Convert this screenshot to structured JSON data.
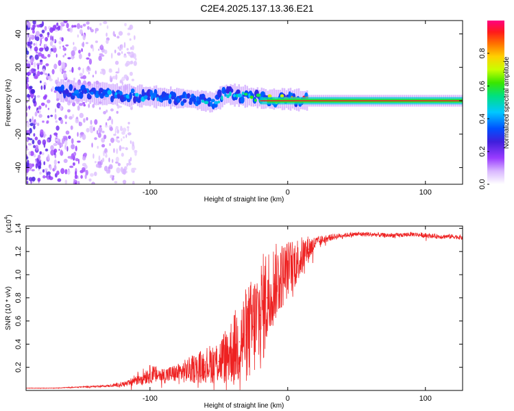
{
  "title": "C2E4.2025.137.13.36.E21",
  "chart_data": [
    {
      "type": "heatmap",
      "title": "C2E4.2025.137.13.36.E21",
      "xlabel": "Height of straight line (km)",
      "ylabel": "Frequency (Hz)",
      "xlim": [
        -190,
        127
      ],
      "ylim": [
        -50,
        48
      ],
      "xticks": [
        -100,
        0,
        100
      ],
      "xtick_labels": [
        "-100",
        "0",
        "100"
      ],
      "yticks": [
        -40,
        -20,
        0,
        20,
        40
      ],
      "ytick_labels": [
        "-40",
        "-20",
        "0",
        "20",
        "40"
      ],
      "colorbar": {
        "label": "Normalized spectral amplitude",
        "range": [
          0,
          1
        ],
        "ticks": [
          0.0,
          0.2,
          0.4,
          0.6,
          0.8
        ],
        "tick_labels": [
          "0.0",
          "0.2",
          "0.4",
          "0.6",
          "0.8"
        ],
        "colors": [
          "#ffffff",
          "#d9b8ff",
          "#9a3cff",
          "#3f1fdc",
          "#0050ff",
          "#00c8ff",
          "#00e080",
          "#39e600",
          "#c8ff00",
          "#ffd000",
          "#ff7000",
          "#ff1a1a",
          "#ff0080"
        ]
      },
      "signal_track": [
        {
          "x": -165,
          "y": 6,
          "amp": 0.3
        },
        {
          "x": -150,
          "y": 5,
          "amp": 0.3
        },
        {
          "x": -130,
          "y": 4,
          "amp": 0.35
        },
        {
          "x": -110,
          "y": 3,
          "amp": 0.35
        },
        {
          "x": -90,
          "y": 2,
          "amp": 0.35
        },
        {
          "x": -70,
          "y": 1,
          "amp": 0.35
        },
        {
          "x": -55,
          "y": -1,
          "amp": 0.4
        },
        {
          "x": -45,
          "y": 4,
          "amp": 0.45
        },
        {
          "x": -35,
          "y": 3,
          "amp": 0.45
        },
        {
          "x": -25,
          "y": 2,
          "amp": 0.5
        },
        {
          "x": -15,
          "y": 1,
          "amp": 0.6
        },
        {
          "x": 0,
          "y": 1,
          "amp": 0.8
        },
        {
          "x": 15,
          "y": 0,
          "amp": 0.9
        },
        {
          "x": 50,
          "y": 0,
          "amp": 0.9
        },
        {
          "x": 90,
          "y": 0,
          "amp": 0.9
        },
        {
          "x": 127,
          "y": 0,
          "amp": 0.9
        }
      ]
    },
    {
      "type": "line",
      "xlabel": "Height of straight line (km)",
      "ylabel": "SNR (10 * v/v)",
      "y_multiplier_label": "(x10",
      "y_multiplier_exponent": "4",
      "y_multiplier_suffix": ")",
      "xlim": [
        -190,
        127
      ],
      "ylim": [
        0,
        1.42
      ],
      "xticks": [
        -100,
        0,
        100
      ],
      "xtick_labels": [
        "-100",
        "0",
        "100"
      ],
      "yticks": [
        0.2,
        0.4,
        0.6,
        0.8,
        1.0,
        1.2,
        1.4
      ],
      "ytick_labels": [
        "0.2",
        "0.4",
        "0.6",
        "0.8",
        "1.0",
        "1.2",
        "1.4"
      ],
      "series": [
        {
          "name": "SNR",
          "color": "#ee2222",
          "x": [
            -190,
            -170,
            -150,
            -130,
            -115,
            -110,
            -100,
            -90,
            -80,
            -70,
            -60,
            -50,
            -40,
            -35,
            -30,
            -25,
            -20,
            -15,
            -10,
            -5,
            0,
            5,
            10,
            15,
            20,
            25,
            30,
            40,
            50,
            60,
            70,
            80,
            90,
            100,
            110,
            120,
            127
          ],
          "values": [
            0.02,
            0.02,
            0.03,
            0.04,
            0.06,
            0.1,
            0.14,
            0.13,
            0.15,
            0.18,
            0.22,
            0.25,
            0.35,
            0.42,
            0.48,
            0.55,
            0.65,
            0.8,
            0.92,
            0.98,
            1.05,
            1.1,
            1.15,
            1.22,
            1.27,
            1.3,
            1.32,
            1.34,
            1.35,
            1.35,
            1.34,
            1.34,
            1.35,
            1.34,
            1.33,
            1.33,
            1.32
          ],
          "noise": [
            0.002,
            0.002,
            0.005,
            0.01,
            0.03,
            0.06,
            0.08,
            0.07,
            0.08,
            0.12,
            0.15,
            0.2,
            0.3,
            0.38,
            0.42,
            0.45,
            0.5,
            0.45,
            0.35,
            0.3,
            0.25,
            0.22,
            0.18,
            0.12,
            0.06,
            0.04,
            0.03,
            0.02,
            0.02,
            0.02,
            0.02,
            0.02,
            0.02,
            0.02,
            0.02,
            0.02,
            0.02
          ]
        }
      ]
    }
  ]
}
